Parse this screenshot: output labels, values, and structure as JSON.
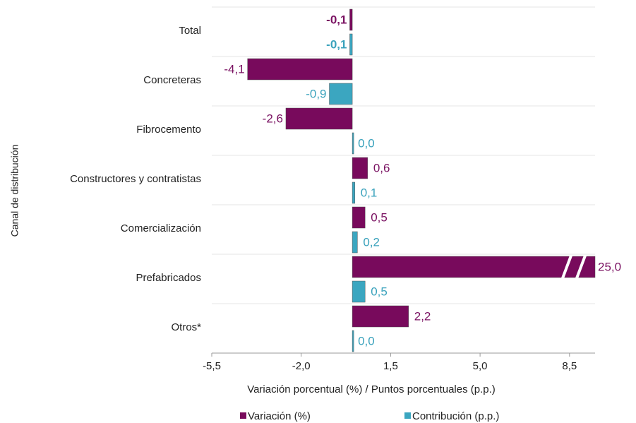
{
  "chart_data": {
    "type": "bar",
    "orientation": "horizontal",
    "y_axis_label": "Canal de distribución",
    "x_axis_label": "Variación porcentual (%) / Puntos porcentuales (p.p.)",
    "categories": [
      "Total",
      "Concreteras",
      "Fibrocemento",
      "Constructores y contratistas",
      "Comercialización",
      "Prefabricados",
      "Otros*"
    ],
    "series": [
      {
        "name": "Variación (%)",
        "color": "#780a5c",
        "label_color": "#7a1262",
        "values": [
          -0.1,
          -4.1,
          -2.6,
          0.6,
          0.5,
          25.0,
          2.2
        ],
        "value_labels": [
          "-0,1",
          "-4,1",
          "-2,6",
          "0,6",
          "0,5",
          "25,0",
          "2,2"
        ]
      },
      {
        "name": "Contribución (p.p.)",
        "color": "#3ba6c0",
        "label_color": "#3aa2bc",
        "values": [
          -0.1,
          -0.9,
          0.0,
          0.1,
          0.2,
          0.5,
          0.0
        ],
        "value_labels": [
          "-0,1",
          "-0,9",
          "0,0",
          "0,1",
          "0,2",
          "0,5",
          "0,0"
        ]
      }
    ],
    "xlim": [
      -5.5,
      9.5
    ],
    "xticks": [
      {
        "value": -5.5,
        "label": "-5,5"
      },
      {
        "value": -2.0,
        "label": "-2,0"
      },
      {
        "value": 1.5,
        "label": "1,5"
      },
      {
        "value": 5.0,
        "label": "5,0"
      },
      {
        "value": 8.5,
        "label": "8,5"
      }
    ],
    "legend": "bottom"
  }
}
